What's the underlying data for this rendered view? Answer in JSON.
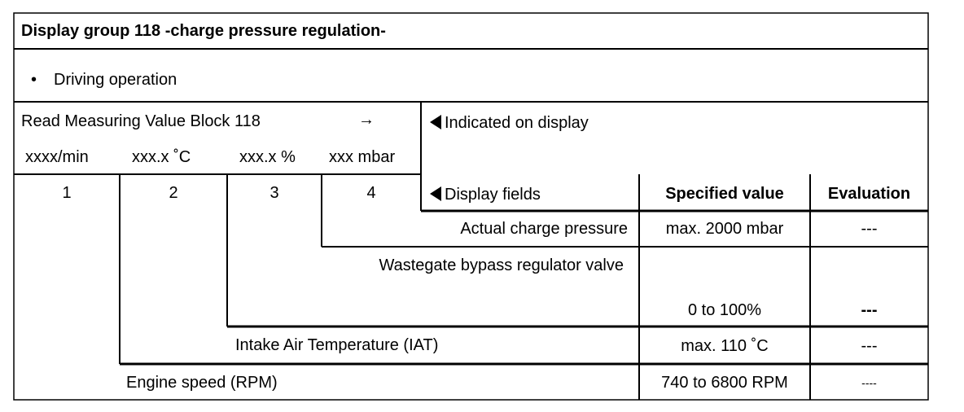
{
  "title": "Display group 118 -charge pressure regulation-",
  "condition": {
    "bullet": "•",
    "text": "Driving operation"
  },
  "read_block": {
    "label": "Read Measuring Value Block 118",
    "arrow": "→",
    "units": [
      "xxxx/min",
      "xxx.x ˚C",
      "xxx.x %",
      "xxx mbar"
    ],
    "field_numbers": [
      "1",
      "2",
      "3",
      "4"
    ]
  },
  "indicated_label": "Indicated on display",
  "headers": {
    "display_fields": "Display fields",
    "specified_value": "Specified value",
    "evaluation": "Evaluation"
  },
  "rows": [
    {
      "field": "Actual charge pressure",
      "specified": "max. 2000 mbar",
      "evaluation": "---"
    },
    {
      "field": "Wastegate bypass regulator valve",
      "specified": "0 to 100%",
      "evaluation": "---"
    },
    {
      "field": "Intake Air Temperature (IAT)",
      "specified": "max. 110 ˚C",
      "evaluation": "---"
    },
    {
      "field": "Engine speed (RPM)",
      "specified": "740 to 6800 RPM",
      "evaluation": "----"
    }
  ],
  "icons": {
    "pointer": "left-triangle-icon"
  }
}
